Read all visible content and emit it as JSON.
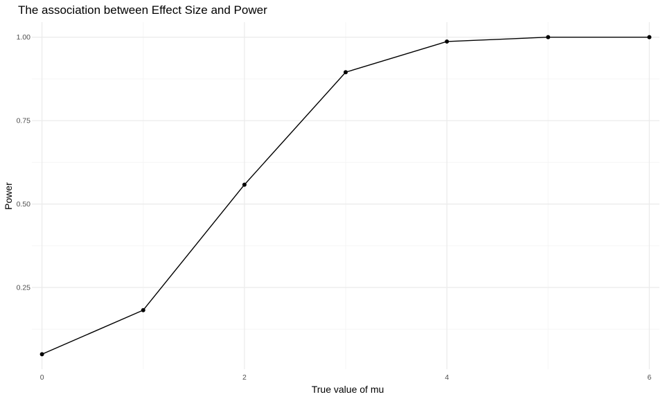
{
  "chart_data": {
    "type": "line",
    "title": "The association between Effect Size and Power",
    "xlabel": "True value of mu",
    "ylabel": "Power",
    "x": [
      0,
      1,
      2,
      3,
      4,
      5,
      6
    ],
    "series": [
      {
        "values": [
          0.05,
          0.182,
          0.558,
          0.895,
          0.987,
          1.0,
          1.0
        ]
      }
    ],
    "xlim": [
      -0.1,
      6.1
    ],
    "ylim": [
      0.005,
      1.045
    ],
    "x_ticks": [
      0,
      2,
      4,
      6
    ],
    "x_tick_labels": [
      "0",
      "2",
      "4",
      "6"
    ],
    "x_minor_ticks": [
      1,
      3,
      5
    ],
    "y_ticks": [
      0.25,
      0.5,
      0.75,
      1.0
    ],
    "y_tick_labels": [
      "0.25",
      "0.50",
      "0.75",
      "1.00"
    ],
    "y_minor_ticks": [
      0.125,
      0.375,
      0.625,
      0.875
    ],
    "grid": true,
    "legend": "none",
    "colors": {
      "line": "#000000",
      "point": "#000000",
      "grid_major": "#ebebeb",
      "grid_minor": "#f5f5f5"
    }
  }
}
